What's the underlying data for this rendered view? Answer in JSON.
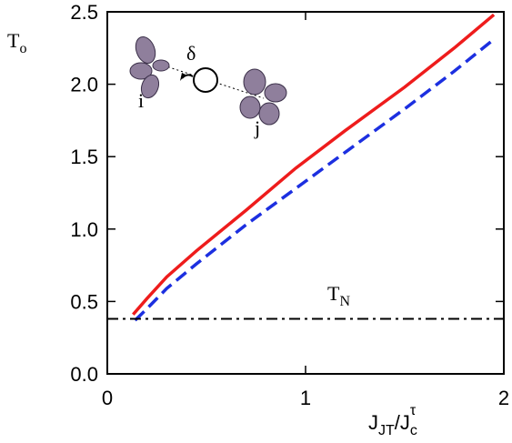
{
  "chart_data": {
    "type": "line",
    "y_label": {
      "main": "T",
      "sub": "o"
    },
    "x_label": {
      "main": "J",
      "sub": "JT",
      "mid": "/J",
      "sub2": "c",
      "sup": "τ"
    },
    "annotation": {
      "main": "T",
      "sub": "N"
    },
    "inset_labels": {
      "delta": "δ",
      "i": "i",
      "j": "j"
    },
    "xlim": [
      0,
      2
    ],
    "ylim": [
      0,
      2.5
    ],
    "xticks": [
      0,
      1,
      2
    ],
    "yticks": [
      {
        "value": 0,
        "label": "0.0"
      },
      0.5,
      {
        "value": 1,
        "label": "1.0"
      },
      1.5,
      {
        "value": 2,
        "label": "2.0"
      },
      2.5
    ],
    "series": [
      {
        "color": "#ee1c1c",
        "style": "solid",
        "x": [
          0.13,
          0.2,
          0.3,
          0.45,
          0.7,
          0.95,
          1.2,
          1.5,
          1.75,
          1.95
        ],
        "values": [
          0.41,
          0.52,
          0.67,
          0.85,
          1.13,
          1.42,
          1.68,
          1.98,
          2.25,
          2.48
        ]
      },
      {
        "color": "#1c2fe0",
        "style": "dashed",
        "x": [
          0.14,
          0.2,
          0.3,
          0.45,
          0.7,
          1.0,
          1.25,
          1.5,
          1.75,
          1.95
        ],
        "values": [
          0.37,
          0.45,
          0.59,
          0.76,
          1.03,
          1.33,
          1.58,
          1.83,
          2.09,
          2.31
        ]
      },
      {
        "color": "#000000",
        "style": "dashdot",
        "x": [
          0,
          2
        ],
        "values": [
          0.38,
          0.38
        ]
      }
    ]
  }
}
